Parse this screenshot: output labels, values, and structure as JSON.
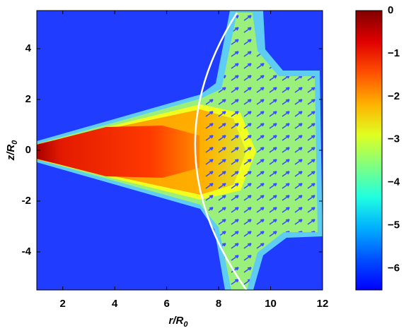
{
  "chart_data": {
    "type": "heatmap",
    "xlabel": "r/R",
    "xlabel_subscript": "0",
    "ylabel": "z/R",
    "ylabel_subscript": "0",
    "xlim": [
      1,
      12
    ],
    "xticks": [
      2,
      4,
      6,
      8,
      10,
      12
    ],
    "ylim": [
      -5.5,
      5.5
    ],
    "yticks": [
      -4,
      -2,
      0,
      2,
      4
    ],
    "colorbar": {
      "colormap": "jet",
      "clim": [
        -6.5,
        0
      ],
      "ticks": [
        {
          "value": -6,
          "label": "−6"
        },
        {
          "value": -5,
          "label": "−5"
        },
        {
          "value": -4,
          "label": "−4"
        },
        {
          "value": -3,
          "label": "−3"
        },
        {
          "value": -2,
          "label": "−2"
        },
        {
          "value": -1,
          "label": "−1"
        },
        0
      ]
    }
  }
}
